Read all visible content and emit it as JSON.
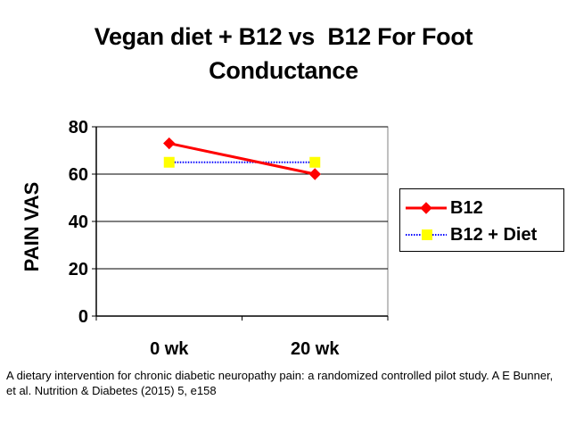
{
  "title": {
    "line1": "Vegan diet + B12 vs  B12 For Foot",
    "line2": "Conductance"
  },
  "caption": "A dietary intervention for chronic diabetic neuropathy pain: a randomized controlled pilot study. A E Bunner, et al. Nutrition & Diabetes (2015) 5, e158",
  "colors": {
    "b12_line": "#ff0000",
    "b12_marker": "#ff0000",
    "diet_line": "#0000ff",
    "diet_marker": "#ffff00"
  },
  "chart_data": {
    "type": "line",
    "title": "Vegan diet + B12 vs  B12 For Foot Conductance",
    "xlabel": "",
    "ylabel": "PAIN VAS",
    "categories": [
      "0 wk",
      "20 wk"
    ],
    "ylim": [
      0,
      80
    ],
    "yticks": [
      0,
      20,
      40,
      60,
      80
    ],
    "grid": true,
    "legend_position": "right",
    "series": [
      {
        "name": "B12",
        "values": [
          73,
          60
        ],
        "marker": "diamond",
        "line_style": "solid"
      },
      {
        "name": "B12 + Diet",
        "values": [
          65,
          65
        ],
        "marker": "square",
        "line_style": "dotted"
      }
    ]
  }
}
